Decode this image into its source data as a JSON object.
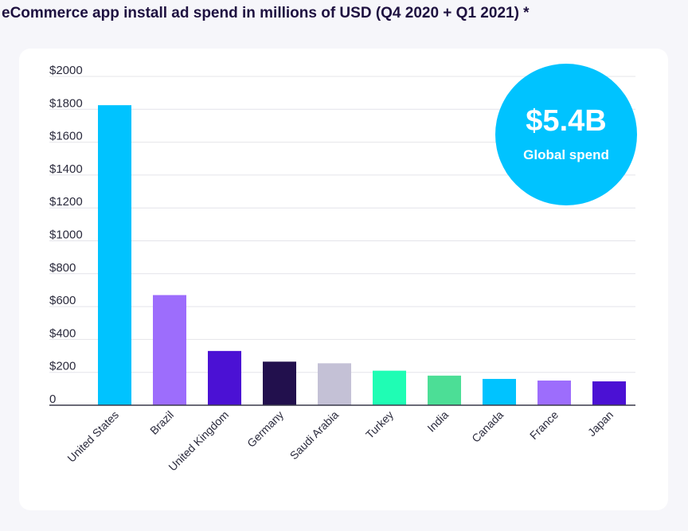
{
  "title": "eCommerce app install ad spend in millions of USD (Q4 2020 + Q1 2021) *",
  "badge": {
    "value": "$5.4B",
    "caption": "Global spend"
  },
  "chart_data": {
    "type": "bar",
    "title": "eCommerce app install ad spend in millions of USD (Q4 2020 + Q1 2021) *",
    "xlabel": "",
    "ylabel": "",
    "ylim": [
      0,
      2000
    ],
    "yticks": [
      0,
      200,
      400,
      600,
      800,
      1000,
      1200,
      1400,
      1600,
      1800,
      2000
    ],
    "ytick_labels": [
      "0",
      "$200",
      "$400",
      "$600",
      "$800",
      "$1000",
      "$1200",
      "$1400",
      "$1600",
      "$1800",
      "$2000"
    ],
    "categories": [
      "United States",
      "Brazil",
      "United Kingdom",
      "Germany",
      "Saudi Arabia",
      "Turkey",
      "India",
      "Canada",
      "France",
      "Japan"
    ],
    "values": [
      1825,
      670,
      330,
      265,
      255,
      210,
      180,
      160,
      150,
      145
    ],
    "colors": [
      "#00c3ff",
      "#9d6dfc",
      "#4b11d4",
      "#22104d",
      "#c4c1d6",
      "#1ffdb4",
      "#4cde96",
      "#00c3ff",
      "#9d6dfc",
      "#4b11d4"
    ],
    "grid": true
  }
}
